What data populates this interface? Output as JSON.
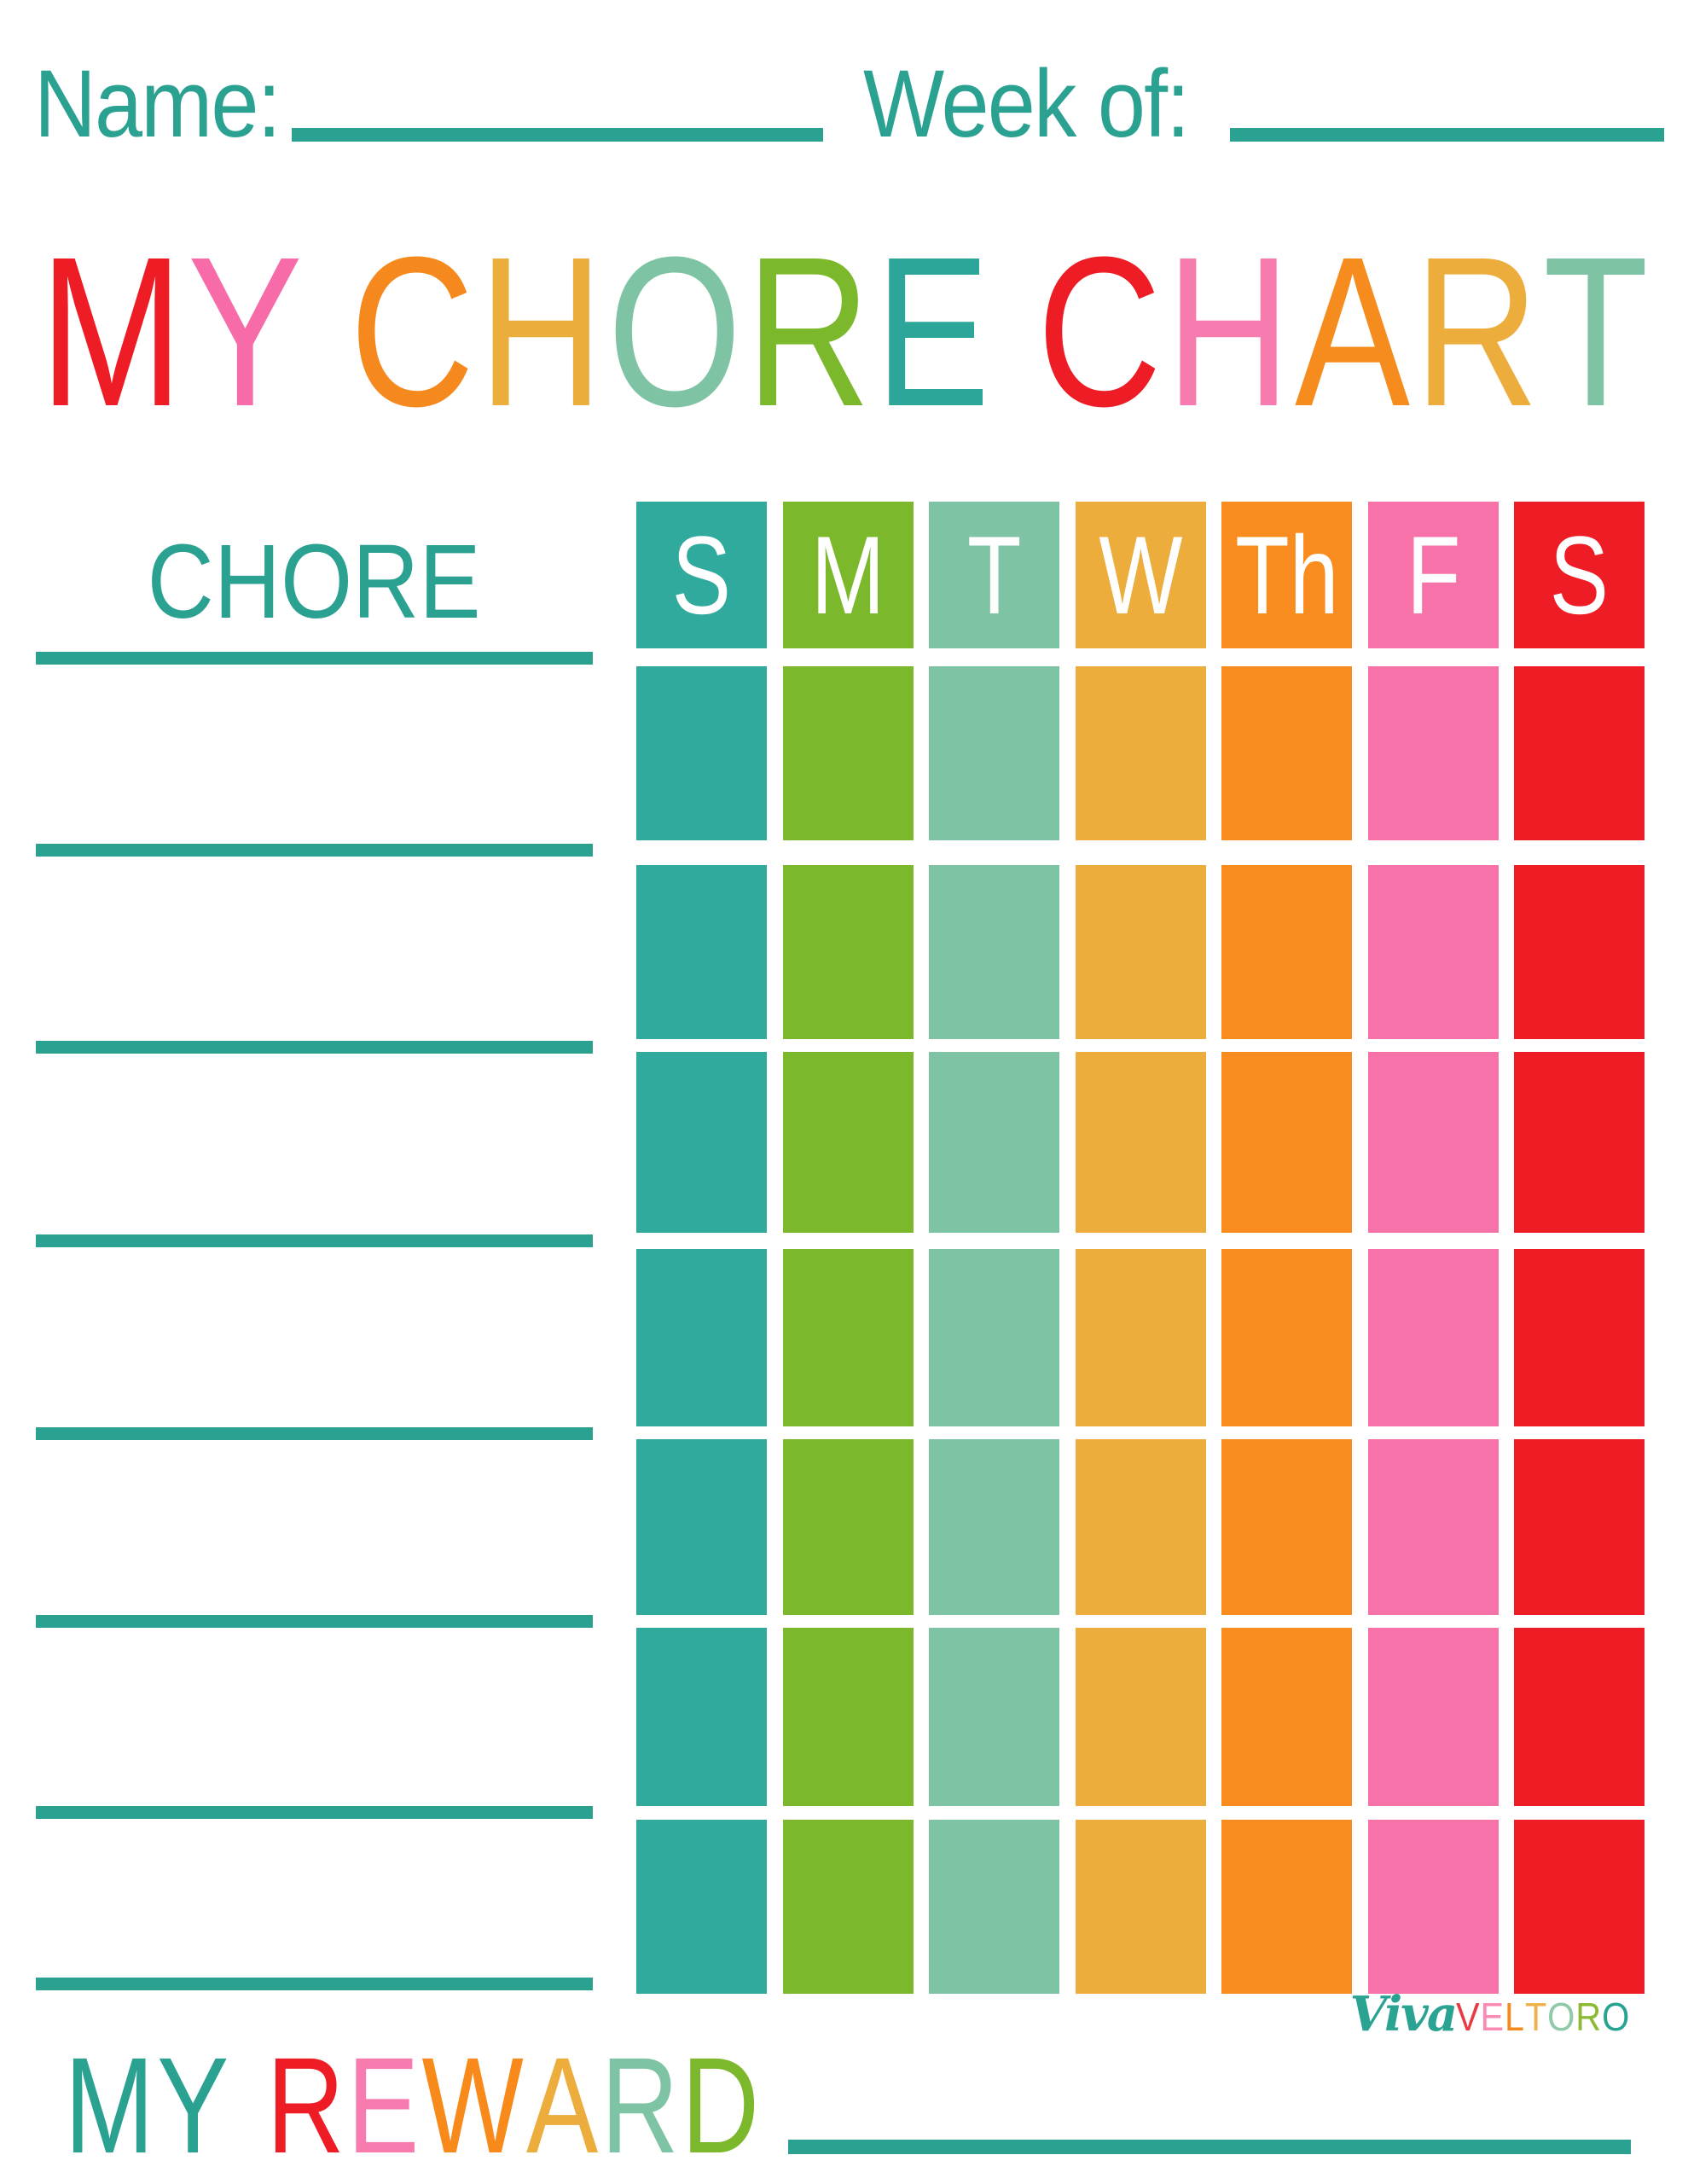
{
  "colors": {
    "rule_teal": "#2AA191",
    "text_teal": "#2AA191",
    "white": "#ffffff"
  },
  "header": {
    "name_label": "Name:",
    "week_label": "Week of:"
  },
  "title": {
    "text": "MY CHORE CHART",
    "letters": [
      {
        "ch": "M",
        "color": "#EE1C24"
      },
      {
        "ch": "Y",
        "color": "#F76CA8"
      },
      {
        "ch": " "
      },
      {
        "ch": "C",
        "color": "#F6891E"
      },
      {
        "ch": "H",
        "color": "#EBAD3B"
      },
      {
        "ch": "O",
        "color": "#7EC4A4"
      },
      {
        "ch": "R",
        "color": "#7CB82B"
      },
      {
        "ch": "E",
        "color": "#2CA698"
      },
      {
        "ch": " "
      },
      {
        "ch": "C",
        "color": "#EE1C24"
      },
      {
        "ch": "H",
        "color": "#F77BAE"
      },
      {
        "ch": "A",
        "color": "#F78C1E"
      },
      {
        "ch": "R",
        "color": "#ECAD3C"
      },
      {
        "ch": "T",
        "color": "#7EC4A4"
      }
    ]
  },
  "chore_column": {
    "header": "CHORE",
    "line_count": 8
  },
  "days": [
    {
      "label": "S",
      "color": "#2FAA9C"
    },
    {
      "label": "M",
      "color": "#7CB82B"
    },
    {
      "label": "T",
      "color": "#7EC4A4"
    },
    {
      "label": "W",
      "color": "#ECAD3C"
    },
    {
      "label": "Th",
      "color": "#F88C1F"
    },
    {
      "label": "F",
      "color": "#F772A8"
    },
    {
      "label": "S",
      "color": "#EE1C24"
    }
  ],
  "table": {
    "body_row_count": 7
  },
  "reward": {
    "text": "MY REWARD",
    "letters": [
      {
        "ch": "M",
        "color": "#2AA191"
      },
      {
        "ch": "Y",
        "color": "#2AA191"
      },
      {
        "ch": " "
      },
      {
        "ch": "R",
        "color": "#EE1C24"
      },
      {
        "ch": "E",
        "color": "#F77BAE"
      },
      {
        "ch": "W",
        "color": "#F8891B"
      },
      {
        "ch": "A",
        "color": "#ECAD3C"
      },
      {
        "ch": "R",
        "color": "#7EC4A4"
      },
      {
        "ch": "D",
        "color": "#7CB82B"
      }
    ]
  },
  "logo": {
    "script_text": "Viva",
    "script_color": "#2BA392",
    "letters": [
      {
        "ch": "V",
        "color": "#E93A44"
      },
      {
        "ch": "E",
        "color": "#F98BB4"
      },
      {
        "ch": "L",
        "color": "#F6891E"
      },
      {
        "ch": "T",
        "color": "#F0B04C"
      },
      {
        "ch": "O",
        "color": "#8FC9A8"
      },
      {
        "ch": "R",
        "color": "#8CBB33"
      },
      {
        "ch": "O",
        "color": "#27A392"
      }
    ]
  }
}
